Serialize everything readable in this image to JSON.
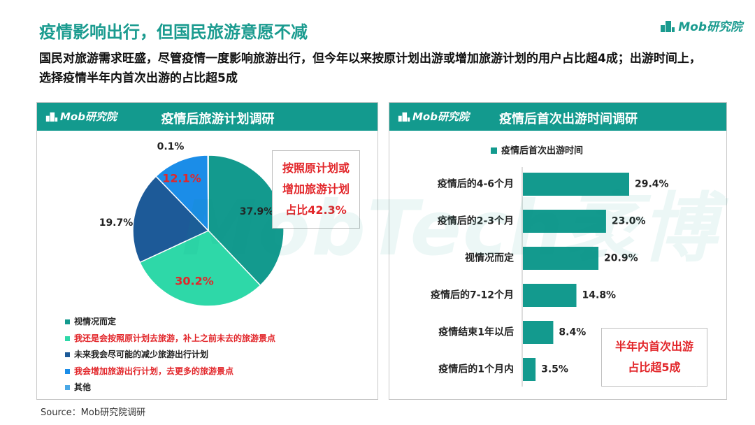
{
  "title": "疫情影响出行，但国民旅游意愿不减",
  "logo_text": "Mob研究院",
  "subtitle": "国民对旅游需求旺盛，尽管疫情一度影响旅游出行，但今年以来按原计划出游或增加旅游计划的用户占比超4成；出游时间上，选择疫情半年内首次出游的占比超5成",
  "left_panel": {
    "logo": "Mob研究院",
    "title": "疫情后旅游计划调研",
    "callout": [
      "按照原计划或",
      "增加旅游计划",
      "占比42.3%"
    ]
  },
  "right_panel": {
    "logo": "Mob研究院",
    "title": "疫情后首次出游时间调研",
    "callout": [
      "半年内首次出游",
      "占比超5成"
    ]
  },
  "watermark": "MobTech袤博",
  "source": "Source：Mob研究院调研",
  "colors": {
    "teal_dark": "#139a8e",
    "teal_light": "#2ed8a8",
    "navy": "#1d5a98",
    "blue": "#1b8de8",
    "light_blue": "#4aa8e6",
    "red": "#e2262a"
  },
  "chart_data": [
    {
      "type": "pie",
      "title": "疫情后旅游计划调研",
      "slices": [
        {
          "label": "视情况而定",
          "value": 37.9,
          "display": "37.9%",
          "color": "#139a8e",
          "label_color": "#222222"
        },
        {
          "label": "我还是会按照原计划去旅游，补上之前未去的旅游景点",
          "value": 30.2,
          "display": "30.2%",
          "color": "#2ed8a8",
          "label_color": "#e2262a"
        },
        {
          "label": "未来我会尽可能的减少旅游出行计划",
          "value": 19.7,
          "display": "19.7%",
          "color": "#1d5a98",
          "label_color": "#222222"
        },
        {
          "label": "我会增加旅游出行计划，去更多的旅游景点",
          "value": 12.1,
          "display": "12.1%",
          "color": "#1b8de8",
          "label_color": "#e2262a"
        },
        {
          "label": "其他",
          "value": 0.1,
          "display": "0.1%",
          "color": "#4aa8e6",
          "label_color": "#222222"
        }
      ],
      "legend_position": "bottom-left"
    },
    {
      "type": "bar",
      "orientation": "horizontal",
      "title": "疫情后首次出游时间调研",
      "series_name": "疫情后首次出游时间",
      "categories": [
        "疫情后的4-6个月",
        "疫情后的2-3个月",
        "视情况而定",
        "疫情后的7-12个月",
        "疫情结束1年以后",
        "疫情后的1个月内"
      ],
      "values": [
        29.4,
        23.0,
        20.9,
        14.8,
        8.4,
        3.5
      ],
      "labels": [
        "29.4%",
        "23.0%",
        "20.9%",
        "14.8%",
        "8.4%",
        "3.5%"
      ],
      "color": "#139a8e",
      "legend_position": "top"
    }
  ]
}
